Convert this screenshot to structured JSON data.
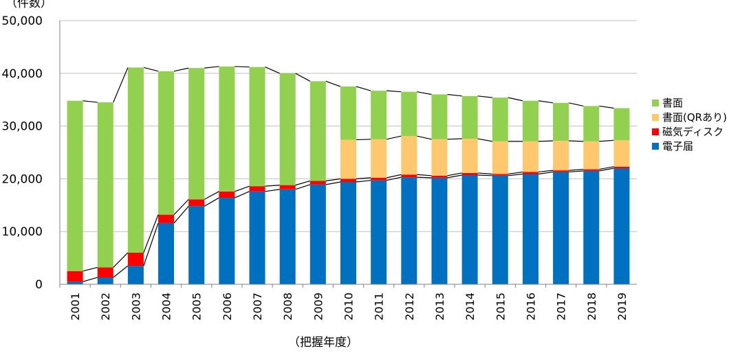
{
  "chart_data": {
    "type": "bar",
    "stacked": true,
    "title": "",
    "ylabel": "（件数）",
    "xlabel": "（把握年度）",
    "ylim": [
      0,
      50000
    ],
    "yticks": [
      0,
      10000,
      20000,
      30000,
      40000,
      50000
    ],
    "ytick_labels": [
      "0",
      "10,000",
      "20,000",
      "30,000",
      "40,000",
      "50,000"
    ],
    "grid": true,
    "legend_position": "right",
    "categories": [
      "2001",
      "2002",
      "2003",
      "2004",
      "2005",
      "2006",
      "2007",
      "2008",
      "2009",
      "2010",
      "2011",
      "2012",
      "2013",
      "2014",
      "2015",
      "2016",
      "2017",
      "2018",
      "2019"
    ],
    "series": [
      {
        "name": "電子届",
        "color": "#0070C0",
        "values": [
          500,
          1300,
          3500,
          11600,
          14800,
          16400,
          17600,
          18000,
          18900,
          19400,
          19700,
          20300,
          20200,
          20700,
          20600,
          20900,
          21300,
          21500,
          22000
        ]
      },
      {
        "name": "磁気ディスク",
        "color": "#FF0000",
        "values": [
          2000,
          1900,
          2500,
          1600,
          1300,
          1200,
          1000,
          800,
          700,
          600,
          500,
          500,
          400,
          400,
          300,
          400,
          300,
          300,
          300
        ]
      },
      {
        "name": "書面(QRあり)",
        "color": "#FFC86E",
        "values": [
          0,
          0,
          0,
          0,
          0,
          0,
          0,
          0,
          0,
          7400,
          7300,
          7300,
          6900,
          6500,
          6200,
          5800,
          5600,
          5300,
          5000
        ]
      },
      {
        "name": "書面",
        "color": "#92D050",
        "values": [
          32300,
          31300,
          35100,
          27200,
          24900,
          23700,
          22600,
          21200,
          18900,
          10100,
          9200,
          8400,
          8500,
          8100,
          8300,
          7700,
          7200,
          6700,
          6100
        ]
      }
    ],
    "legend_order": [
      "書面",
      "書面(QRあり)",
      "磁気ディスク",
      "電子届"
    ]
  }
}
